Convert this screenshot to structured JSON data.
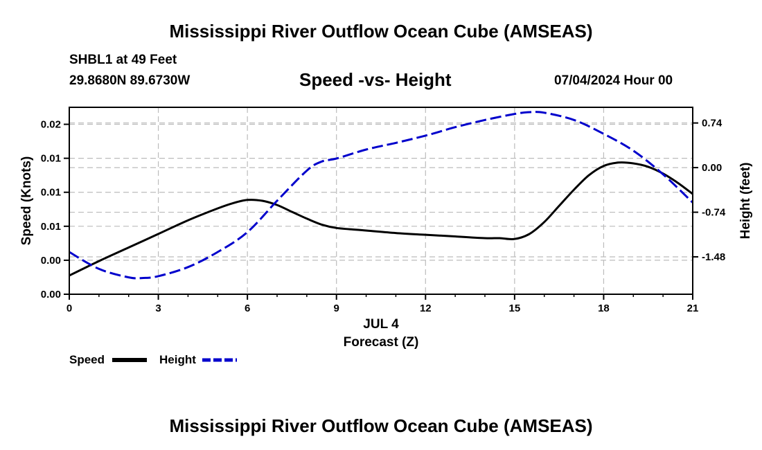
{
  "header": {
    "title": "Mississippi River Outflow Ocean Cube (AMSEAS)",
    "station": "SHBL1 at 49 Feet",
    "coords": "29.8680N  89.6730W",
    "date": "07/04/2024 Hour 00",
    "bottom_title": "Mississippi River Outflow Ocean Cube (AMSEAS)"
  },
  "chart_data": {
    "type": "line",
    "title": "Speed -vs- Height",
    "xlabel": "Forecast (Z)",
    "xlabel_date": "JUL 4",
    "ylabel": "Speed (Knots)",
    "y2label": "Height (feet)",
    "xlim": [
      0,
      21
    ],
    "ylim": [
      0,
      0.022
    ],
    "y2lim": [
      -2.1,
      1.0
    ],
    "x_ticks": [
      0,
      3,
      6,
      9,
      12,
      15,
      18,
      21
    ],
    "x_tick_labels": [
      "0",
      "3",
      "6",
      "9",
      "12",
      "15",
      "18",
      "21"
    ],
    "y_ticks": [
      0,
      0.004,
      0.008,
      0.012,
      0.016,
      0.02
    ],
    "y_tick_labels": [
      "0.00",
      "0.00",
      "0.01",
      "0.01",
      "0.01",
      "0.02"
    ],
    "y2_ticks": [
      -1.48,
      -0.74,
      0.0,
      0.74
    ],
    "y2_tick_labels": [
      "-1.48",
      "-0.74",
      "0.00",
      "0.74"
    ],
    "grid": true,
    "series": [
      {
        "name": "Speed",
        "color": "#000000",
        "style": "solid",
        "axis": "left",
        "x": [
          0,
          1,
          2,
          3,
          4,
          5,
          5.5,
          6,
          6.5,
          7,
          7.5,
          8,
          8.5,
          9,
          10,
          11,
          12,
          13,
          14,
          14.5,
          15,
          15.5,
          16,
          16.5,
          17,
          17.5,
          18,
          18.5,
          19,
          19.5,
          20,
          20.5,
          21
        ],
        "values": [
          0.0022,
          0.0039,
          0.0055,
          0.0071,
          0.0087,
          0.0101,
          0.0107,
          0.0111,
          0.011,
          0.0105,
          0.0097,
          0.0089,
          0.0082,
          0.0078,
          0.0075,
          0.0072,
          0.007,
          0.0068,
          0.0066,
          0.0066,
          0.0065,
          0.0071,
          0.0085,
          0.0104,
          0.0123,
          0.014,
          0.0151,
          0.0155,
          0.0154,
          0.015,
          0.0142,
          0.0131,
          0.0118
        ]
      },
      {
        "name": "Height",
        "color": "#0000cc",
        "style": "dashed",
        "axis": "right",
        "x": [
          0,
          1,
          2,
          2.5,
          3,
          4,
          5,
          6,
          7,
          8,
          8.5,
          9,
          10,
          11,
          12,
          13,
          14,
          15,
          15.5,
          16,
          17,
          18,
          19,
          20,
          21
        ],
        "values": [
          -1.4,
          -1.68,
          -1.82,
          -1.83,
          -1.8,
          -1.65,
          -1.4,
          -1.07,
          -0.55,
          -0.05,
          0.1,
          0.15,
          0.3,
          0.41,
          0.53,
          0.67,
          0.79,
          0.89,
          0.92,
          0.91,
          0.79,
          0.56,
          0.28,
          -0.11,
          -0.58
        ]
      }
    ]
  }
}
